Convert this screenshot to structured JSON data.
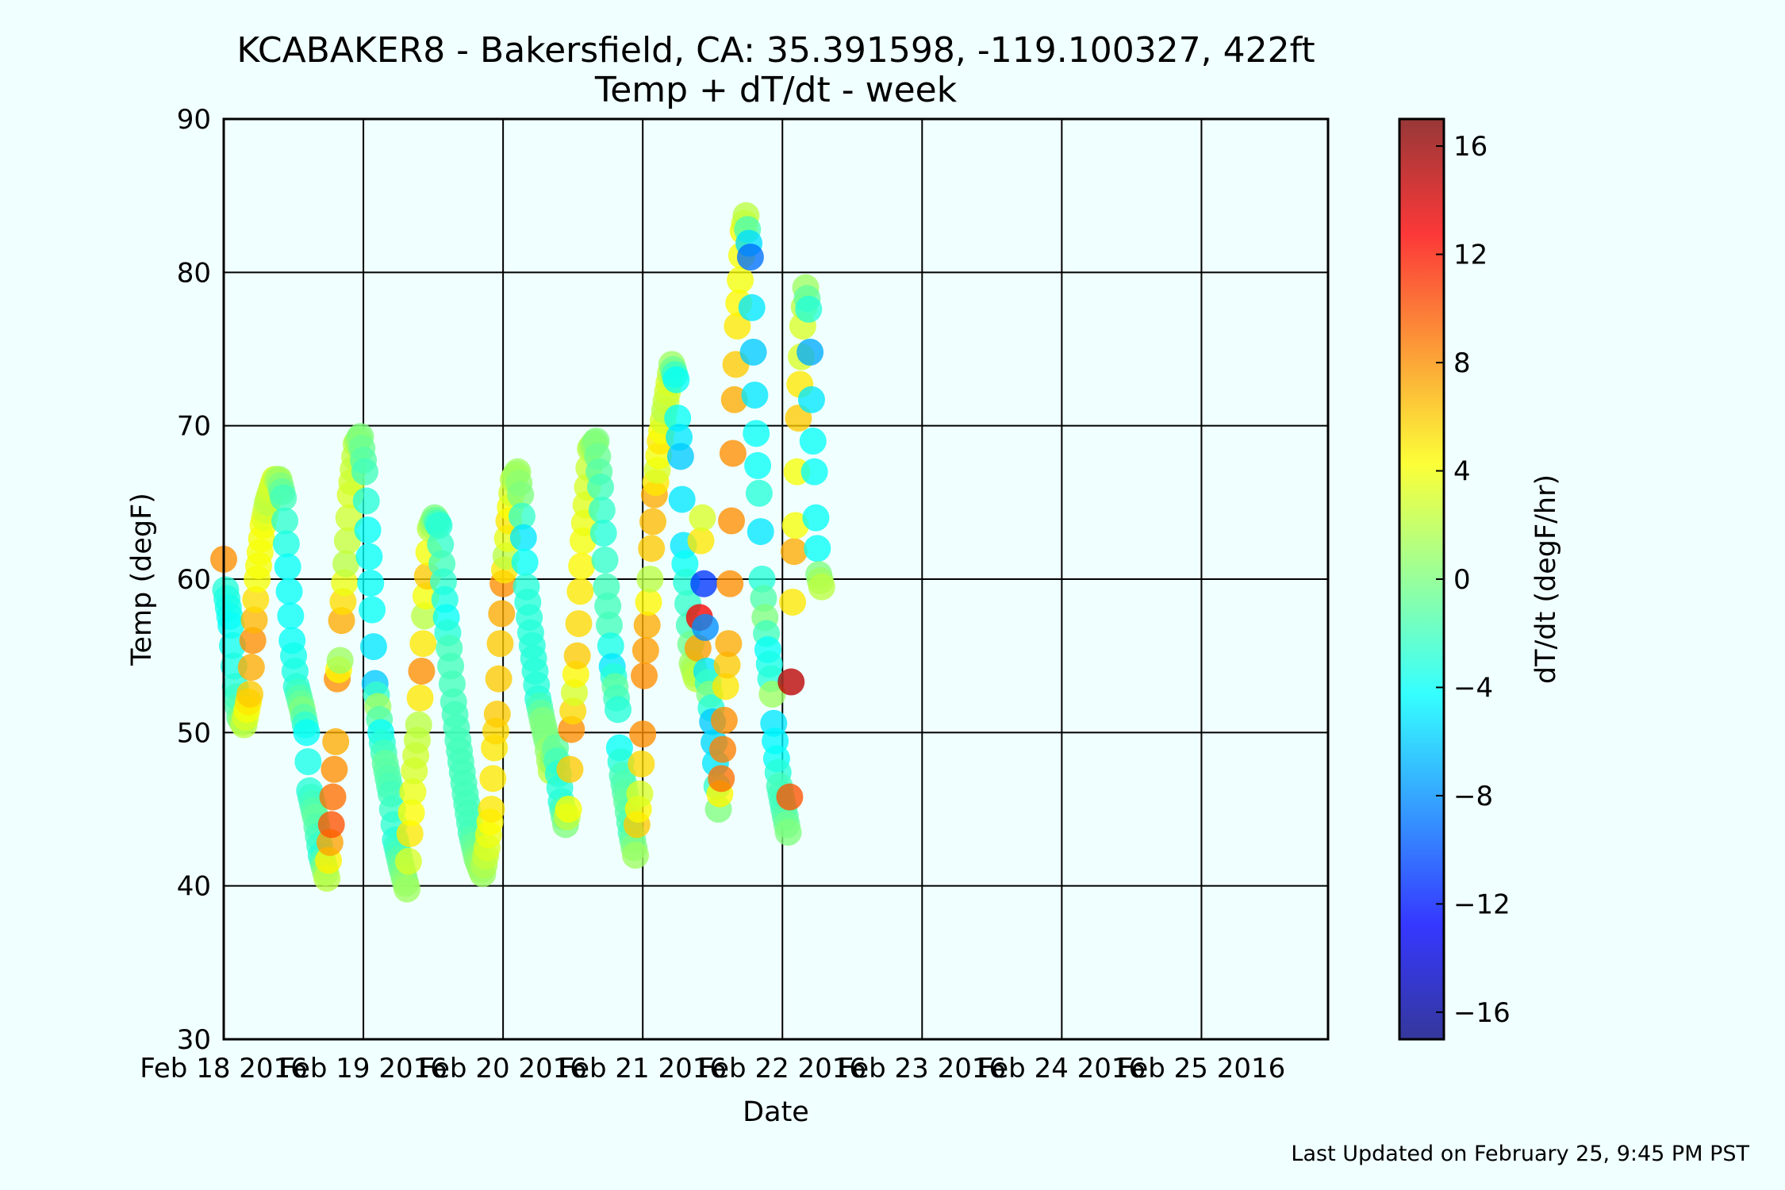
{
  "chart_data": {
    "type": "scatter",
    "title": "KCABAKER8 - Bakersfield, CA: 35.391598, -119.100327, 422ft",
    "subtitle": "Temp + dT/dt - week",
    "xlabel": "Date",
    "ylabel": "Temp (degF)",
    "colorbar_label": "dT/dt (degF/hr)",
    "footer": "Last Updated on February 25, 9:45 PM PST",
    "xlim": [
      "2016-02-18T00:00",
      "2016-02-25T21:45"
    ],
    "ylim": [
      30,
      90
    ],
    "clim": [
      -17,
      17
    ],
    "grid": true,
    "x_ticks": [
      "Feb 18 2016",
      "Feb 19 2016",
      "Feb 20 2016",
      "Feb 21 2016",
      "Feb 22 2016",
      "Feb 23 2016",
      "Feb 24 2016",
      "Feb 25 2016"
    ],
    "y_ticks": [
      30,
      40,
      50,
      60,
      70,
      80,
      90
    ],
    "colorbar_ticks": [
      16,
      12,
      8,
      4,
      0,
      -4,
      -8,
      -12,
      -16
    ],
    "colormap": [
      "#00007f",
      "#0000ff",
      "#007fff",
      "#00ffff",
      "#7fff7f",
      "#ffff00",
      "#ff7f00",
      "#ff0000",
      "#7f0000"
    ],
    "key_points": [
      {
        "t": "2016-02-18T00:00",
        "temp": 61.3,
        "dtdt": 8
      },
      {
        "t": "2016-02-18T00:20",
        "temp": 59.3,
        "dtdt": -3
      },
      {
        "t": "2016-02-18T01:15",
        "temp": 57.0,
        "dtdt": -4
      },
      {
        "t": "2016-02-18T02:00",
        "temp": 53.0,
        "dtdt": -3
      },
      {
        "t": "2016-02-18T02:45",
        "temp": 51.0,
        "dtdt": -1
      },
      {
        "t": "2016-02-18T03:30",
        "temp": 50.5,
        "dtdt": 2
      },
      {
        "t": "2016-02-18T04:30",
        "temp": 52.5,
        "dtdt": 6
      },
      {
        "t": "2016-02-18T05:00",
        "temp": 56.0,
        "dtdt": 8
      },
      {
        "t": "2016-02-18T05:45",
        "temp": 60.0,
        "dtdt": 4
      },
      {
        "t": "2016-02-18T06:45",
        "temp": 63.5,
        "dtdt": 4
      },
      {
        "t": "2016-02-18T07:30",
        "temp": 65.0,
        "dtdt": 2
      },
      {
        "t": "2016-02-18T08:45",
        "temp": 66.5,
        "dtdt": 3
      },
      {
        "t": "2016-02-18T09:30",
        "temp": 66.5,
        "dtdt": 1
      },
      {
        "t": "2016-02-18T10:15",
        "temp": 65.3,
        "dtdt": -2
      },
      {
        "t": "2016-02-18T11:00",
        "temp": 60.8,
        "dtdt": -4
      },
      {
        "t": "2016-02-18T11:45",
        "temp": 56.0,
        "dtdt": -4
      },
      {
        "t": "2016-02-18T12:30",
        "temp": 53.0,
        "dtdt": -3
      },
      {
        "t": "2016-02-18T13:30",
        "temp": 51.5,
        "dtdt": 0
      },
      {
        "t": "2016-02-18T14:15",
        "temp": 50.0,
        "dtdt": -4
      },
      {
        "t": "2016-02-18T14:45",
        "temp": 46.2,
        "dtdt": -3
      },
      {
        "t": "2016-02-18T15:45",
        "temp": 44.5,
        "dtdt": -1
      },
      {
        "t": "2016-02-18T16:45",
        "temp": 42.0,
        "dtdt": -3
      },
      {
        "t": "2016-02-18T17:45",
        "temp": 40.5,
        "dtdt": 2
      },
      {
        "t": "2016-02-18T18:30",
        "temp": 44.0,
        "dtdt": 10
      },
      {
        "t": "2016-02-18T19:15",
        "temp": 49.4,
        "dtdt": 7
      },
      {
        "t": "2016-02-18T19:30",
        "temp": 53.5,
        "dtdt": 8
      },
      {
        "t": "2016-02-18T20:00",
        "temp": 54.7,
        "dtdt": 1
      },
      {
        "t": "2016-02-18T20:15",
        "temp": 57.3,
        "dtdt": 7
      },
      {
        "t": "2016-02-18T21:00",
        "temp": 61.0,
        "dtdt": 2
      },
      {
        "t": "2016-02-18T21:45",
        "temp": 65.5,
        "dtdt": 3
      },
      {
        "t": "2016-02-18T22:45",
        "temp": 68.8,
        "dtdt": 2
      },
      {
        "t": "2016-02-18T23:30",
        "temp": 69.3,
        "dtdt": 0
      },
      {
        "t": "2016-02-19T00:15",
        "temp": 67.0,
        "dtdt": -2
      },
      {
        "t": "2016-02-19T00:45",
        "temp": 63.2,
        "dtdt": -4
      },
      {
        "t": "2016-02-19T01:30",
        "temp": 58.0,
        "dtdt": -4
      },
      {
        "t": "2016-02-19T02:00",
        "temp": 53.2,
        "dtdt": -6
      },
      {
        "t": "2016-02-19T02:30",
        "temp": 51.7,
        "dtdt": 1
      },
      {
        "t": "2016-02-19T03:00",
        "temp": 50.0,
        "dtdt": -4
      },
      {
        "t": "2016-02-19T03:45",
        "temp": 48.0,
        "dtdt": -1
      },
      {
        "t": "2016-02-19T04:45",
        "temp": 46.0,
        "dtdt": -2
      },
      {
        "t": "2016-02-19T05:30",
        "temp": 43.0,
        "dtdt": -3
      },
      {
        "t": "2016-02-19T06:30",
        "temp": 41.3,
        "dtdt": -1
      },
      {
        "t": "2016-02-19T07:30",
        "temp": 39.8,
        "dtdt": 1
      },
      {
        "t": "2016-02-19T08:00",
        "temp": 43.4,
        "dtdt": 5
      },
      {
        "t": "2016-02-19T08:45",
        "temp": 47.5,
        "dtdt": 3
      },
      {
        "t": "2016-02-19T09:30",
        "temp": 50.5,
        "dtdt": 2
      },
      {
        "t": "2016-02-19T10:00",
        "temp": 54.0,
        "dtdt": 8
      },
      {
        "t": "2016-02-19T10:30",
        "temp": 57.6,
        "dtdt": 2
      },
      {
        "t": "2016-02-19T11:00",
        "temp": 60.2,
        "dtdt": 6
      },
      {
        "t": "2016-02-19T11:30",
        "temp": 63.3,
        "dtdt": 2
      },
      {
        "t": "2016-02-19T12:15",
        "temp": 64.0,
        "dtdt": 0
      },
      {
        "t": "2016-02-19T13:00",
        "temp": 63.5,
        "dtdt": -3
      },
      {
        "t": "2016-02-19T13:30",
        "temp": 61.0,
        "dtdt": -2
      },
      {
        "t": "2016-02-19T14:15",
        "temp": 57.5,
        "dtdt": -4
      },
      {
        "t": "2016-02-19T14:45",
        "temp": 55.5,
        "dtdt": -2
      },
      {
        "t": "2016-02-19T15:30",
        "temp": 52.0,
        "dtdt": -2
      },
      {
        "t": "2016-02-19T16:15",
        "temp": 49.5,
        "dtdt": -2
      },
      {
        "t": "2016-02-19T17:30",
        "temp": 46.0,
        "dtdt": -2
      },
      {
        "t": "2016-02-19T18:30",
        "temp": 43.5,
        "dtdt": -2
      },
      {
        "t": "2016-02-19T19:30",
        "temp": 41.8,
        "dtdt": 0
      },
      {
        "t": "2016-02-19T20:30",
        "temp": 40.8,
        "dtdt": 1
      },
      {
        "t": "2016-02-19T21:15",
        "temp": 42.5,
        "dtdt": 3
      },
      {
        "t": "2016-02-19T22:00",
        "temp": 45.0,
        "dtdt": 5
      },
      {
        "t": "2016-02-19T22:30",
        "temp": 49.0,
        "dtdt": 5
      },
      {
        "t": "2016-02-19T23:00",
        "temp": 51.2,
        "dtdt": 6
      },
      {
        "t": "2016-02-19T23:30",
        "temp": 55.8,
        "dtdt": 6
      },
      {
        "t": "2016-02-20T00:00",
        "temp": 59.7,
        "dtdt": 8
      },
      {
        "t": "2016-02-20T00:30",
        "temp": 61.5,
        "dtdt": 2
      },
      {
        "t": "2016-02-20T01:00",
        "temp": 63.8,
        "dtdt": 5
      },
      {
        "t": "2016-02-20T01:45",
        "temp": 66.5,
        "dtdt": 2
      },
      {
        "t": "2016-02-20T02:30",
        "temp": 67.0,
        "dtdt": 1
      },
      {
        "t": "2016-02-20T03:00",
        "temp": 65.5,
        "dtdt": 0
      },
      {
        "t": "2016-02-20T03:30",
        "temp": 62.7,
        "dtdt": -5
      },
      {
        "t": "2016-02-20T04:00",
        "temp": 59.5,
        "dtdt": -3
      },
      {
        "t": "2016-02-20T04:45",
        "temp": 56.5,
        "dtdt": -3
      },
      {
        "t": "2016-02-20T05:30",
        "temp": 54.0,
        "dtdt": -3
      },
      {
        "t": "2016-02-20T06:00",
        "temp": 52.2,
        "dtdt": -3
      },
      {
        "t": "2016-02-20T06:45",
        "temp": 50.8,
        "dtdt": 0
      },
      {
        "t": "2016-02-20T07:30",
        "temp": 49.5,
        "dtdt": 0
      },
      {
        "t": "2016-02-20T08:15",
        "temp": 47.5,
        "dtdt": 2
      },
      {
        "t": "2016-02-20T09:00",
        "temp": 49.0,
        "dtdt": -1
      },
      {
        "t": "2016-02-20T09:30",
        "temp": 47.3,
        "dtdt": -3
      },
      {
        "t": "2016-02-20T10:00",
        "temp": 45.5,
        "dtdt": -3
      },
      {
        "t": "2016-02-20T10:45",
        "temp": 44.0,
        "dtdt": 0
      },
      {
        "t": "2016-02-20T11:15",
        "temp": 45.0,
        "dtdt": 4
      },
      {
        "t": "2016-02-20T11:45",
        "temp": 50.2,
        "dtdt": 8
      },
      {
        "t": "2016-02-20T12:15",
        "temp": 52.6,
        "dtdt": 3
      },
      {
        "t": "2016-02-20T12:45",
        "temp": 55.0,
        "dtdt": 6
      },
      {
        "t": "2016-02-20T13:15",
        "temp": 59.2,
        "dtdt": 5
      },
      {
        "t": "2016-02-20T13:45",
        "temp": 62.5,
        "dtdt": 4
      },
      {
        "t": "2016-02-20T14:30",
        "temp": 66.0,
        "dtdt": 3
      },
      {
        "t": "2016-02-20T15:00",
        "temp": 68.5,
        "dtdt": 2
      },
      {
        "t": "2016-02-20T16:00",
        "temp": 69.0,
        "dtdt": 0
      },
      {
        "t": "2016-02-20T16:45",
        "temp": 66.0,
        "dtdt": -2
      },
      {
        "t": "2016-02-20T17:15",
        "temp": 63.0,
        "dtdt": -3
      },
      {
        "t": "2016-02-20T17:45",
        "temp": 59.5,
        "dtdt": -2
      },
      {
        "t": "2016-02-20T18:15",
        "temp": 57.0,
        "dtdt": -2
      },
      {
        "t": "2016-02-20T18:45",
        "temp": 54.3,
        "dtdt": -5
      },
      {
        "t": "2016-02-20T19:15",
        "temp": 53.0,
        "dtdt": -1
      },
      {
        "t": "2016-02-20T19:45",
        "temp": 51.5,
        "dtdt": -3
      },
      {
        "t": "2016-02-20T20:00",
        "temp": 49.0,
        "dtdt": -4
      },
      {
        "t": "2016-02-20T20:30",
        "temp": 47.2,
        "dtdt": -2
      },
      {
        "t": "2016-02-20T21:15",
        "temp": 45.5,
        "dtdt": -1
      },
      {
        "t": "2016-02-20T22:00",
        "temp": 43.5,
        "dtdt": -2
      },
      {
        "t": "2016-02-20T22:45",
        "temp": 42.0,
        "dtdt": 1
      },
      {
        "t": "2016-02-20T23:00",
        "temp": 44.0,
        "dtdt": 6
      },
      {
        "t": "2016-02-20T23:30",
        "temp": 46.0,
        "dtdt": 3
      },
      {
        "t": "2016-02-21T00:00",
        "temp": 49.9,
        "dtdt": 8
      },
      {
        "t": "2016-02-21T00:15",
        "temp": 53.7,
        "dtdt": 8
      },
      {
        "t": "2016-02-21T00:45",
        "temp": 57.0,
        "dtdt": 7
      },
      {
        "t": "2016-02-21T01:15",
        "temp": 60.0,
        "dtdt": 2
      },
      {
        "t": "2016-02-21T01:30",
        "temp": 62.0,
        "dtdt": 6
      },
      {
        "t": "2016-02-21T02:00",
        "temp": 65.5,
        "dtdt": 7
      },
      {
        "t": "2016-02-21T02:30",
        "temp": 67.1,
        "dtdt": 3
      },
      {
        "t": "2016-02-21T03:00",
        "temp": 69.0,
        "dtdt": 5
      },
      {
        "t": "2016-02-21T03:45",
        "temp": 71.0,
        "dtdt": 2
      },
      {
        "t": "2016-02-21T04:30",
        "temp": 72.8,
        "dtdt": 3
      },
      {
        "t": "2016-02-21T05:00",
        "temp": 74.0,
        "dtdt": 1
      },
      {
        "t": "2016-02-21T05:45",
        "temp": 73.0,
        "dtdt": -4
      },
      {
        "t": "2016-02-21T06:00",
        "temp": 70.5,
        "dtdt": -4
      },
      {
        "t": "2016-02-21T06:30",
        "temp": 68.0,
        "dtdt": -6
      },
      {
        "t": "2016-02-21T06:45",
        "temp": 65.2,
        "dtdt": -5
      },
      {
        "t": "2016-02-21T07:00",
        "temp": 62.2,
        "dtdt": -5
      },
      {
        "t": "2016-02-21T07:30",
        "temp": 59.8,
        "dtdt": -3
      },
      {
        "t": "2016-02-21T08:00",
        "temp": 57.0,
        "dtdt": -2
      },
      {
        "t": "2016-02-21T08:30",
        "temp": 54.5,
        "dtdt": 1
      },
      {
        "t": "2016-02-21T09:15",
        "temp": 53.5,
        "dtdt": 2
      },
      {
        "t": "2016-02-21T09:45",
        "temp": 57.5,
        "dtdt": 13
      },
      {
        "t": "2016-02-21T10:00",
        "temp": 62.5,
        "dtdt": 5
      },
      {
        "t": "2016-02-21T10:15",
        "temp": 64.0,
        "dtdt": 3
      },
      {
        "t": "2016-02-21T10:30",
        "temp": 59.7,
        "dtdt": -11
      },
      {
        "t": "2016-02-21T11:00",
        "temp": 54.0,
        "dtdt": -5
      },
      {
        "t": "2016-02-21T11:30",
        "temp": 52.5,
        "dtdt": 0
      },
      {
        "t": "2016-02-21T12:00",
        "temp": 50.7,
        "dtdt": -6
      },
      {
        "t": "2016-02-21T12:30",
        "temp": 48.0,
        "dtdt": -5
      },
      {
        "t": "2016-02-21T13:00",
        "temp": 45.0,
        "dtdt": 0
      },
      {
        "t": "2016-02-21T13:30",
        "temp": 47.0,
        "dtdt": 9
      },
      {
        "t": "2016-02-21T14:00",
        "temp": 50.8,
        "dtdt": 8
      },
      {
        "t": "2016-02-21T14:15",
        "temp": 53.0,
        "dtdt": 5
      },
      {
        "t": "2016-02-21T14:45",
        "temp": 55.8,
        "dtdt": 7
      },
      {
        "t": "2016-02-21T15:00",
        "temp": 59.7,
        "dtdt": 8
      },
      {
        "t": "2016-02-21T15:15",
        "temp": 63.8,
        "dtdt": 8
      },
      {
        "t": "2016-02-21T15:30",
        "temp": 68.2,
        "dtdt": 8
      },
      {
        "t": "2016-02-21T15:45",
        "temp": 71.7,
        "dtdt": 7
      },
      {
        "t": "2016-02-21T16:00",
        "temp": 74.0,
        "dtdt": 6
      },
      {
        "t": "2016-02-21T16:15",
        "temp": 76.5,
        "dtdt": 5
      },
      {
        "t": "2016-02-21T16:45",
        "temp": 79.5,
        "dtdt": 4
      },
      {
        "t": "2016-02-21T17:15",
        "temp": 82.7,
        "dtdt": 4
      },
      {
        "t": "2016-02-21T17:45",
        "temp": 83.7,
        "dtdt": 2
      },
      {
        "t": "2016-02-21T18:30",
        "temp": 81.0,
        "dtdt": -9
      },
      {
        "t": "2016-02-21T18:45",
        "temp": 77.7,
        "dtdt": -5
      },
      {
        "t": "2016-02-21T19:00",
        "temp": 74.8,
        "dtdt": -6
      },
      {
        "t": "2016-02-21T19:15",
        "temp": 72.0,
        "dtdt": -5
      },
      {
        "t": "2016-02-21T19:30",
        "temp": 69.5,
        "dtdt": -4
      },
      {
        "t": "2016-02-21T19:45",
        "temp": 67.4,
        "dtdt": -4
      },
      {
        "t": "2016-02-21T20:00",
        "temp": 65.6,
        "dtdt": -3
      },
      {
        "t": "2016-02-21T20:15",
        "temp": 63.1,
        "dtdt": -5
      },
      {
        "t": "2016-02-21T20:30",
        "temp": 60.0,
        "dtdt": -3
      },
      {
        "t": "2016-02-21T21:00",
        "temp": 57.5,
        "dtdt": 0
      },
      {
        "t": "2016-02-21T21:30",
        "temp": 55.4,
        "dtdt": -4
      },
      {
        "t": "2016-02-21T22:00",
        "temp": 53.5,
        "dtdt": -3
      },
      {
        "t": "2016-02-21T22:15",
        "temp": 52.5,
        "dtdt": 1
      },
      {
        "t": "2016-02-21T22:30",
        "temp": 50.6,
        "dtdt": -5
      },
      {
        "t": "2016-02-21T23:00",
        "temp": 48.3,
        "dtdt": -4
      },
      {
        "t": "2016-02-21T23:30",
        "temp": 46.5,
        "dtdt": -2
      },
      {
        "t": "2016-02-22T00:15",
        "temp": 45.0,
        "dtdt": -2
      },
      {
        "t": "2016-02-22T01:00",
        "temp": 43.5,
        "dtdt": 0
      },
      {
        "t": "2016-02-22T01:15",
        "temp": 45.8,
        "dtdt": 10
      },
      {
        "t": "2016-02-22T01:30",
        "temp": 53.3,
        "dtdt": 15
      },
      {
        "t": "2016-02-22T01:45",
        "temp": 58.5,
        "dtdt": 5
      },
      {
        "t": "2016-02-22T02:00",
        "temp": 61.8,
        "dtdt": 7
      },
      {
        "t": "2016-02-22T02:15",
        "temp": 63.5,
        "dtdt": 4
      },
      {
        "t": "2016-02-22T02:30",
        "temp": 67.0,
        "dtdt": 4
      },
      {
        "t": "2016-02-22T02:45",
        "temp": 70.5,
        "dtdt": 6
      },
      {
        "t": "2016-02-22T03:00",
        "temp": 72.7,
        "dtdt": 5
      },
      {
        "t": "2016-02-22T03:15",
        "temp": 74.5,
        "dtdt": 3
      },
      {
        "t": "2016-02-22T03:30",
        "temp": 76.5,
        "dtdt": 3
      },
      {
        "t": "2016-02-22T04:00",
        "temp": 79.0,
        "dtdt": 1
      },
      {
        "t": "2016-02-22T04:30",
        "temp": 77.6,
        "dtdt": -3
      },
      {
        "t": "2016-02-22T04:45",
        "temp": 74.8,
        "dtdt": -7
      },
      {
        "t": "2016-02-22T05:00",
        "temp": 71.7,
        "dtdt": -5
      },
      {
        "t": "2016-02-22T05:15",
        "temp": 69.0,
        "dtdt": -4
      },
      {
        "t": "2016-02-22T05:30",
        "temp": 67.0,
        "dtdt": -4
      },
      {
        "t": "2016-02-22T05:45",
        "temp": 64.0,
        "dtdt": -4
      },
      {
        "t": "2016-02-22T06:00",
        "temp": 62.0,
        "dtdt": -4
      },
      {
        "t": "2016-02-22T06:15",
        "temp": 60.3,
        "dtdt": 0
      },
      {
        "t": "2016-02-22T06:45",
        "temp": 59.5,
        "dtdt": 2
      }
    ]
  }
}
